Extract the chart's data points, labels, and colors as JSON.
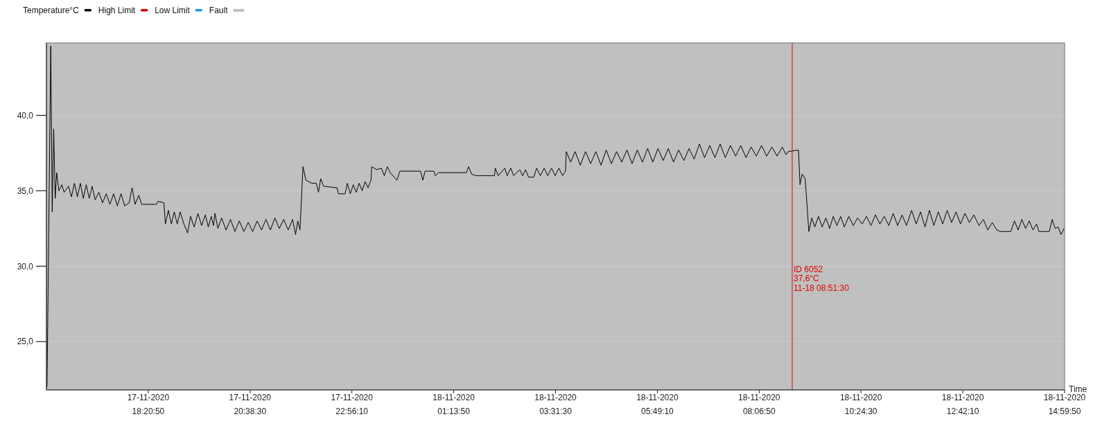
{
  "chart_data": {
    "type": "line",
    "x": [
      "2020-11-17T16:04",
      "2020-11-17T16:09",
      "2020-11-17T16:11",
      "2020-11-17T16:13",
      "2020-11-17T16:15",
      "2020-11-17T16:17",
      "2020-11-17T16:20",
      "2020-11-17T16:24",
      "2020-11-17T16:27",
      "2020-11-17T16:33",
      "2020-11-17T16:37",
      "2020-11-17T16:41",
      "2020-11-17T16:45",
      "2020-11-17T16:49",
      "2020-11-17T16:53",
      "2020-11-17T16:57",
      "2020-11-17T17:01",
      "2020-11-17T17:05",
      "2020-11-17T17:09",
      "2020-11-17T17:14",
      "2020-11-17T17:19",
      "2020-11-17T17:24",
      "2020-11-17T17:29",
      "2020-11-17T17:34",
      "2020-11-17T17:39",
      "2020-11-17T17:44",
      "2020-11-17T17:49",
      "2020-11-17T17:55",
      "2020-11-17T17:59",
      "2020-11-17T18:03",
      "2020-11-17T18:08",
      "2020-11-17T18:12",
      "2020-11-17T18:32",
      "2020-11-17T18:34",
      "2020-11-17T18:42",
      "2020-11-17T18:44",
      "2020-11-17T18:48",
      "2020-11-17T18:52",
      "2020-11-17T18:56",
      "2020-11-17T19:00",
      "2020-11-17T19:04",
      "2020-11-17T19:09",
      "2020-11-17T19:14",
      "2020-11-17T19:18",
      "2020-11-17T19:23",
      "2020-11-17T19:28",
      "2020-11-17T19:33",
      "2020-11-17T19:38",
      "2020-11-17T19:42",
      "2020-11-17T19:46",
      "2020-11-17T19:49",
      "2020-11-17T19:51",
      "2020-11-17T19:55",
      "2020-11-17T20:00",
      "2020-11-17T20:06",
      "2020-11-17T20:12",
      "2020-11-17T20:18",
      "2020-11-17T20:24",
      "2020-11-17T20:30",
      "2020-11-17T20:36",
      "2020-11-17T20:42",
      "2020-11-17T20:48",
      "2020-11-17T20:54",
      "2020-11-17T21:00",
      "2020-11-17T21:06",
      "2020-11-17T21:12",
      "2020-11-17T21:18",
      "2020-11-17T21:24",
      "2020-11-17T21:30",
      "2020-11-17T21:36",
      "2020-11-17T21:40",
      "2020-11-17T21:43",
      "2020-11-17T21:46",
      "2020-11-17T21:50",
      "2020-11-17T21:54",
      "2020-11-17T22:02",
      "2020-11-17T22:08",
      "2020-11-17T22:11",
      "2020-11-17T22:14",
      "2020-11-17T22:18",
      "2020-11-17T22:36",
      "2020-11-17T22:38",
      "2020-11-17T22:47",
      "2020-11-17T22:50",
      "2020-11-17T22:54",
      "2020-11-17T22:58",
      "2020-11-17T23:02",
      "2020-11-17T23:06",
      "2020-11-17T23:10",
      "2020-11-17T23:14",
      "2020-11-17T23:18",
      "2020-11-17T23:22",
      "2020-11-17T23:23",
      "2020-11-17T23:30",
      "2020-11-17T23:36",
      "2020-11-17T23:40",
      "2020-11-17T23:44",
      "2020-11-17T23:48",
      "2020-11-17T23:57",
      "2020-11-18T00:01",
      "2020-11-18T00:29",
      "2020-11-18T00:32",
      "2020-11-18T00:35",
      "2020-11-18T00:47",
      "2020-11-18T00:49",
      "2020-11-18T00:53",
      "2020-11-18T01:31",
      "2020-11-18T01:34",
      "2020-11-18T01:38",
      "2020-11-18T01:44",
      "2020-11-18T02:09",
      "2020-11-18T02:10",
      "2020-11-18T02:14",
      "2020-11-18T02:23",
      "2020-11-18T02:26",
      "2020-11-18T02:31",
      "2020-11-18T02:35",
      "2020-11-18T02:43",
      "2020-11-18T02:47",
      "2020-11-18T02:51",
      "2020-11-18T02:55",
      "2020-11-18T03:02",
      "2020-11-18T03:06",
      "2020-11-18T03:11",
      "2020-11-18T03:16",
      "2020-11-18T03:21",
      "2020-11-18T03:26",
      "2020-11-18T03:31",
      "2020-11-18T03:36",
      "2020-11-18T03:41",
      "2020-11-18T03:45",
      "2020-11-18T03:46",
      "2020-11-18T03:52",
      "2020-11-18T03:58",
      "2020-11-18T04:05",
      "2020-11-18T04:12",
      "2020-11-18T04:19",
      "2020-11-18T04:26",
      "2020-11-18T04:33",
      "2020-11-18T04:40",
      "2020-11-18T04:47",
      "2020-11-18T04:54",
      "2020-11-18T05:01",
      "2020-11-18T05:08",
      "2020-11-18T05:15",
      "2020-11-18T05:22",
      "2020-11-18T05:29",
      "2020-11-18T05:36",
      "2020-11-18T05:43",
      "2020-11-18T05:50",
      "2020-11-18T05:57",
      "2020-11-18T06:04",
      "2020-11-18T06:11",
      "2020-11-18T06:18",
      "2020-11-18T06:25",
      "2020-11-18T06:32",
      "2020-11-18T06:39",
      "2020-11-18T06:46",
      "2020-11-18T06:53",
      "2020-11-18T07:00",
      "2020-11-18T07:07",
      "2020-11-18T07:14",
      "2020-11-18T07:21",
      "2020-11-18T07:28",
      "2020-11-18T07:35",
      "2020-11-18T07:42",
      "2020-11-18T07:49",
      "2020-11-18T07:56",
      "2020-11-18T08:03",
      "2020-11-18T08:10",
      "2020-11-18T08:17",
      "2020-11-18T08:24",
      "2020-11-18T08:31",
      "2020-11-18T08:38",
      "2020-11-18T08:43",
      "2020-11-18T08:46",
      "2020-11-18T09:00",
      "2020-11-18T09:02",
      "2020-11-18T09:05",
      "2020-11-18T09:09",
      "2020-11-18T09:14",
      "2020-11-18T09:18",
      "2020-11-18T09:22",
      "2020-11-18T09:27",
      "2020-11-18T09:32",
      "2020-11-18T09:37",
      "2020-11-18T09:42",
      "2020-11-18T09:47",
      "2020-11-18T09:52",
      "2020-11-18T09:57",
      "2020-11-18T10:02",
      "2020-11-18T10:08",
      "2020-11-18T10:14",
      "2020-11-18T10:20",
      "2020-11-18T10:26",
      "2020-11-18T10:32",
      "2020-11-18T10:38",
      "2020-11-18T10:44",
      "2020-11-18T10:50",
      "2020-11-18T10:56",
      "2020-11-18T11:02",
      "2020-11-18T11:08",
      "2020-11-18T11:14",
      "2020-11-18T11:20",
      "2020-11-18T11:26",
      "2020-11-18T11:33",
      "2020-11-18T11:39",
      "2020-11-18T11:45",
      "2020-11-18T11:51",
      "2020-11-18T11:57",
      "2020-11-18T12:03",
      "2020-11-18T12:09",
      "2020-11-18T12:15",
      "2020-11-18T12:21",
      "2020-11-18T12:27",
      "2020-11-18T12:33",
      "2020-11-18T12:39",
      "2020-11-18T12:45",
      "2020-11-18T12:51",
      "2020-11-18T12:57",
      "2020-11-18T13:04",
      "2020-11-18T13:10",
      "2020-11-18T13:16",
      "2020-11-18T13:22",
      "2020-11-18T13:28",
      "2020-11-18T13:33",
      "2020-11-18T13:47",
      "2020-11-18T13:52",
      "2020-11-18T13:57",
      "2020-11-18T14:02",
      "2020-11-18T14:07",
      "2020-11-18T14:12",
      "2020-11-18T14:17",
      "2020-11-18T14:22",
      "2020-11-18T14:25",
      "2020-11-18T14:39",
      "2020-11-18T14:43",
      "2020-11-18T14:47",
      "2020-11-18T14:51",
      "2020-11-18T14:55",
      "2020-11-18T14:59"
    ],
    "series": [
      {
        "name": "Temperature°C",
        "color": "#000000",
        "values": [
          22.0,
          44.6,
          33.6,
          39.1,
          34.5,
          36.2,
          35.0,
          35.4,
          34.9,
          35.3,
          34.6,
          35.5,
          34.6,
          35.5,
          34.5,
          35.4,
          34.5,
          35.3,
          34.4,
          34.9,
          34.2,
          34.8,
          34.1,
          34.8,
          34.0,
          34.8,
          34.0,
          34.2,
          35.2,
          34.1,
          34.7,
          34.1,
          34.1,
          34.3,
          34.2,
          32.8,
          33.7,
          32.8,
          33.6,
          32.8,
          33.6,
          32.8,
          32.2,
          33.3,
          32.6,
          33.5,
          32.7,
          33.4,
          32.6,
          33.3,
          32.7,
          33.5,
          32.5,
          33.2,
          32.4,
          33.1,
          32.3,
          33.0,
          32.3,
          32.9,
          32.3,
          33.0,
          32.4,
          33.1,
          32.4,
          33.2,
          32.5,
          33.1,
          32.4,
          33.1,
          32.1,
          33.0,
          32.4,
          36.6,
          35.7,
          35.5,
          35.5,
          34.9,
          35.8,
          35.3,
          35.2,
          34.8,
          34.8,
          35.5,
          34.8,
          35.4,
          34.9,
          35.5,
          35.0,
          35.6,
          35.2,
          35.7,
          36.6,
          36.4,
          36.5,
          36.0,
          36.6,
          36.2,
          35.7,
          36.3,
          36.3,
          35.7,
          36.3,
          36.3,
          36.0,
          36.2,
          36.2,
          36.6,
          36.1,
          36.0,
          36.0,
          36.5,
          36.0,
          36.5,
          36.0,
          36.5,
          36.0,
          36.4,
          36.0,
          36.4,
          35.9,
          35.9,
          36.5,
          36.0,
          36.5,
          36.0,
          36.5,
          36.0,
          36.5,
          36.0,
          36.3,
          37.6,
          36.9,
          37.6,
          36.7,
          37.6,
          36.8,
          37.6,
          36.7,
          37.7,
          36.8,
          37.6,
          36.9,
          37.7,
          36.8,
          37.7,
          36.9,
          37.8,
          36.9,
          37.8,
          37.0,
          37.8,
          36.9,
          37.7,
          37.0,
          37.8,
          37.1,
          38.1,
          37.2,
          38.0,
          37.2,
          38.1,
          37.2,
          38.0,
          37.3,
          38.0,
          37.2,
          37.9,
          37.3,
          38.0,
          37.3,
          37.9,
          37.3,
          37.9,
          37.4,
          37.6,
          37.7,
          35.4,
          36.1,
          35.8,
          32.3,
          33.2,
          32.6,
          33.3,
          32.6,
          33.2,
          32.5,
          33.3,
          32.7,
          33.3,
          32.6,
          33.3,
          32.7,
          33.2,
          32.8,
          33.3,
          32.7,
          33.4,
          32.8,
          33.3,
          32.7,
          33.5,
          32.7,
          33.4,
          32.7,
          33.7,
          32.8,
          33.6,
          32.6,
          33.7,
          32.7,
          33.6,
          32.8,
          33.7,
          32.9,
          33.6,
          32.8,
          33.5,
          32.9,
          33.4,
          32.7,
          33.1,
          32.4,
          32.9,
          32.4,
          32.3,
          32.3,
          33.0,
          32.4,
          33.1,
          32.5,
          33.0,
          32.4,
          32.8,
          32.3,
          32.3,
          33.1,
          32.5,
          32.6,
          32.1,
          32.5
        ]
      },
      {
        "name": "High Limit",
        "color": "#e00000",
        "values": [
          null,
          null,
          null,
          null,
          null,
          null,
          null,
          null,
          null,
          null,
          null,
          null,
          null,
          null,
          null,
          null,
          null,
          null,
          null,
          null,
          null,
          null,
          null,
          null,
          null,
          null,
          null,
          null,
          null,
          null,
          null,
          null,
          null,
          null,
          null,
          null,
          null,
          null,
          null,
          null,
          null,
          null,
          null,
          null,
          null,
          null,
          null,
          null,
          null,
          null,
          null,
          null,
          null,
          null,
          null,
          null,
          null,
          null,
          null,
          null,
          null,
          null,
          null,
          null,
          null,
          null,
          null,
          null,
          null,
          null,
          null,
          null,
          null,
          null,
          null,
          null,
          null,
          null,
          null,
          null,
          null,
          null,
          null,
          null,
          null,
          null,
          null,
          null,
          null,
          null,
          null,
          null,
          null,
          null,
          null,
          null,
          null,
          null,
          null,
          null,
          null,
          null,
          null,
          null,
          null,
          null,
          null,
          null,
          null,
          null,
          null,
          null,
          null,
          null,
          null,
          null,
          null,
          null,
          null,
          null,
          null,
          null,
          null,
          null,
          null,
          null,
          null,
          null,
          null,
          null,
          null,
          null,
          null,
          null,
          null,
          null,
          null,
          null,
          null,
          null,
          null,
          null,
          null,
          null,
          null,
          null,
          null,
          null,
          null,
          null,
          null,
          null,
          null,
          null,
          null,
          null,
          null,
          null,
          null,
          null,
          null,
          null,
          null,
          null,
          null,
          null,
          null,
          null,
          null,
          null,
          null,
          null,
          null,
          null,
          null,
          null,
          null,
          null,
          null,
          null,
          null,
          null,
          null,
          null,
          null,
          null,
          null,
          null,
          null,
          null,
          null,
          null,
          null,
          null,
          null,
          null,
          null,
          null,
          null,
          null,
          null,
          null,
          null,
          null,
          null,
          null,
          null,
          null,
          null,
          null,
          null,
          null,
          null,
          null,
          null,
          null,
          null,
          null,
          null,
          null,
          null,
          null,
          null,
          null,
          null,
          null,
          null,
          null,
          null,
          null,
          null,
          null,
          null,
          null,
          null,
          null,
          null,
          null,
          null,
          null,
          null
        ]
      },
      {
        "name": "Low Limit",
        "color": "#2196f3",
        "values": [
          null,
          null,
          null,
          null,
          null,
          null,
          null,
          null,
          null,
          null,
          null,
          null,
          null,
          null,
          null,
          null,
          null,
          null,
          null,
          null,
          null,
          null,
          null,
          null,
          null,
          null,
          null,
          null,
          null,
          null,
          null,
          null,
          null,
          null,
          null,
          null,
          null,
          null,
          null,
          null,
          null,
          null,
          null,
          null,
          null,
          null,
          null,
          null,
          null,
          null,
          null,
          null,
          null,
          null,
          null,
          null,
          null,
          null,
          null,
          null,
          null,
          null,
          null,
          null,
          null,
          null,
          null,
          null,
          null,
          null,
          null,
          null,
          null,
          null,
          null,
          null,
          null,
          null,
          null,
          null,
          null,
          null,
          null,
          null,
          null,
          null,
          null,
          null,
          null,
          null,
          null,
          null,
          null,
          null,
          null,
          null,
          null,
          null,
          null,
          null,
          null,
          null,
          null,
          null,
          null,
          null,
          null,
          null,
          null,
          null,
          null,
          null,
          null,
          null,
          null,
          null,
          null,
          null,
          null,
          null,
          null,
          null,
          null,
          null,
          null,
          null,
          null,
          null,
          null,
          null,
          null,
          null,
          null,
          null,
          null,
          null,
          null,
          null,
          null,
          null,
          null,
          null,
          null,
          null,
          null,
          null,
          null,
          null,
          null,
          null,
          null,
          null,
          null,
          null,
          null,
          null,
          null,
          null,
          null,
          null,
          null,
          null,
          null,
          null,
          null,
          null,
          null,
          null,
          null,
          null,
          null,
          null,
          null,
          null,
          null,
          null,
          null,
          null,
          null,
          null,
          null,
          null,
          null,
          null,
          null,
          null,
          null,
          null,
          null,
          null,
          null,
          null,
          null,
          null,
          null,
          null,
          null,
          null,
          null,
          null,
          null,
          null,
          null,
          null,
          null,
          null,
          null,
          null,
          null,
          null,
          null,
          null,
          null,
          null,
          null,
          null,
          null,
          null,
          null,
          null,
          null,
          null,
          null,
          null,
          null,
          null,
          null,
          null,
          null,
          null,
          null,
          null,
          null,
          null,
          null,
          null,
          null,
          null,
          null,
          null,
          null
        ]
      }
    ],
    "xlabel": "Time",
    "xlim": [
      "2020-11-17T16:03:10",
      "2020-11-18T14:59:50"
    ],
    "xticks": [
      {
        "value": "2020-11-17T18:20:50",
        "label": "17-11-2020\n18:20:50"
      },
      {
        "value": "2020-11-17T20:38:30",
        "label": "17-11-2020\n20:38:30"
      },
      {
        "value": "2020-11-17T22:56:10",
        "label": "17-11-2020\n22:56:10"
      },
      {
        "value": "2020-11-18T01:13:50",
        "label": "18-11-2020\n01:13:50"
      },
      {
        "value": "2020-11-18T03:31:30",
        "label": "18-11-2020\n03:31:30"
      },
      {
        "value": "2020-11-18T05:49:10",
        "label": "18-11-2020\n05:49:10"
      },
      {
        "value": "2020-11-18T08:06:50",
        "label": "18-11-2020\n08:06:50"
      },
      {
        "value": "2020-11-18T10:24:30",
        "label": "18-11-2020\n10:24:30"
      },
      {
        "value": "2020-11-18T12:42:10",
        "label": "18-11-2020\n12:42:10"
      },
      {
        "value": "2020-11-18T14:59:50",
        "label": "18-11-2020\n14:59:50"
      }
    ],
    "ylim": [
      21.8,
      44.8
    ],
    "yticks": [
      {
        "value": 25,
        "label": "25,0"
      },
      {
        "value": 30,
        "label": "30,0"
      },
      {
        "value": 35,
        "label": "35,0"
      },
      {
        "value": 40,
        "label": "40,0"
      }
    ],
    "bands": [
      {
        "axis": "x",
        "from": "2020-11-17T16:03:10",
        "to": "2020-11-18T14:59:50",
        "label": "Fault",
        "color": "#c0c0c0"
      }
    ],
    "ref_lines": [
      {
        "axis": "x",
        "value": "2020-11-18T08:51:30",
        "label": "ID 6052\n37,6°C\n11-18 08:51:30",
        "color": "#e00000"
      }
    ],
    "grid": "y",
    "legend": "top left",
    "line_style": "solid"
  }
}
